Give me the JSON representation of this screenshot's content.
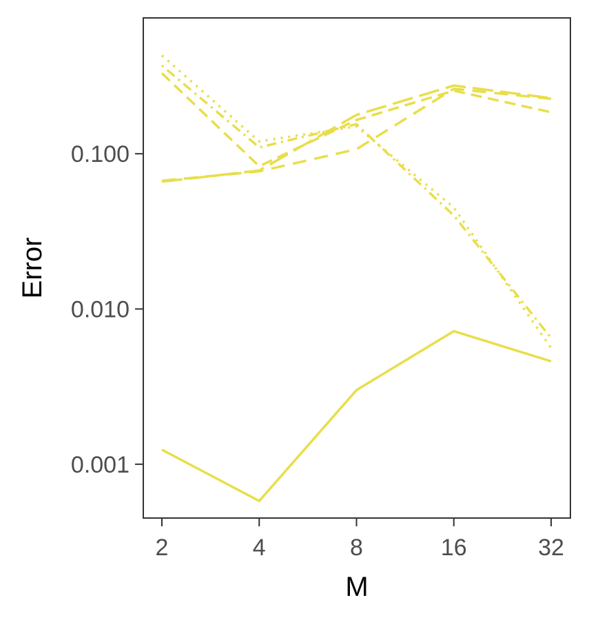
{
  "chart_data": {
    "type": "line",
    "xlabel": "M",
    "ylabel": "Error",
    "x_scale": "log2",
    "y_scale": "log10",
    "x": [
      2,
      4,
      8,
      16,
      32
    ],
    "x_tick_labels": [
      "2",
      "4",
      "8",
      "16",
      "32"
    ],
    "y_ticks": [
      0.001,
      0.01,
      0.1
    ],
    "y_tick_labels": [
      "0.001",
      "0.010",
      "0.100"
    ],
    "ylim": [
      0.00045,
      0.75
    ],
    "grid": false,
    "legend": "none",
    "series_color": "#E8DE4A",
    "series": [
      {
        "dash": "solid",
        "values": [
          0.00124,
          0.00058,
          0.003,
          0.0072,
          0.0046
        ]
      },
      {
        "dash": "dashed",
        "values": [
          0.33,
          0.083,
          0.165,
          0.255,
          0.185
        ]
      },
      {
        "dash": "longdash",
        "values": [
          0.066,
          0.078,
          0.178,
          0.275,
          0.228
        ]
      },
      {
        "dash": "dashed2",
        "values": [
          0.067,
          0.077,
          0.107,
          0.262,
          0.226
        ]
      },
      {
        "dash": "dotted",
        "values": [
          0.43,
          0.12,
          0.15,
          0.045,
          0.0056
        ]
      },
      {
        "dash": "dotdash",
        "values": [
          0.37,
          0.11,
          0.155,
          0.04,
          0.0065
        ]
      }
    ]
  }
}
